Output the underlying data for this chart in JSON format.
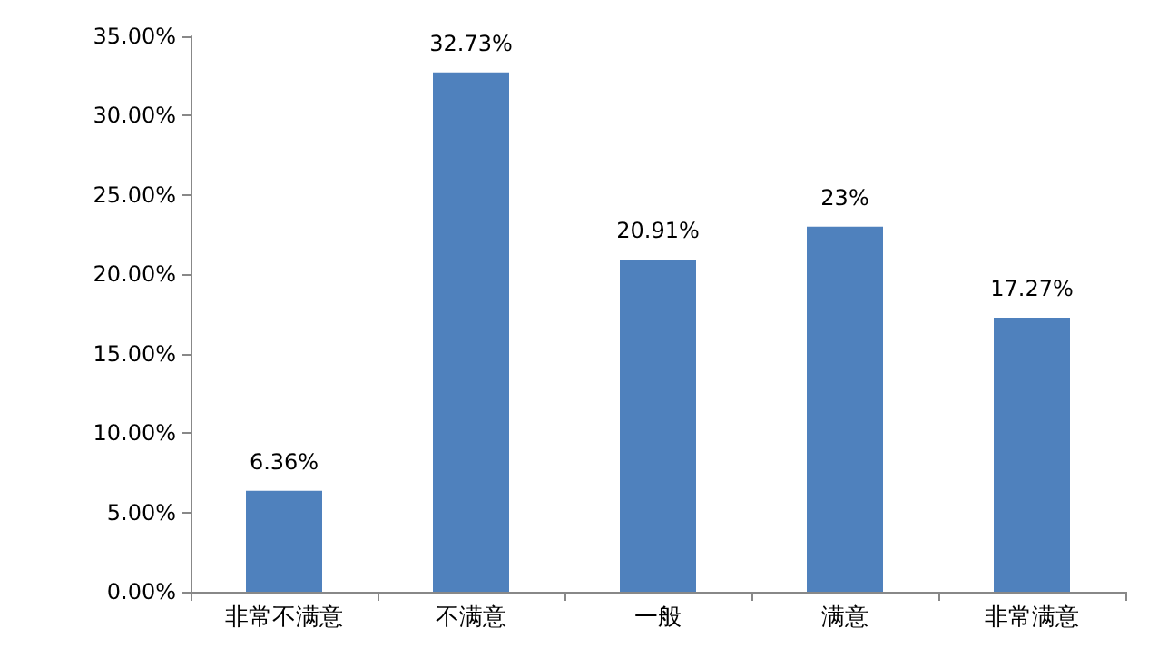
{
  "chart_data": {
    "type": "bar",
    "categories": [
      "非常不满意",
      "不满意",
      "一般",
      "满意",
      "非常满意"
    ],
    "values": [
      6.36,
      32.73,
      20.91,
      23,
      17.27
    ],
    "value_labels": [
      "6.36%",
      "32.73%",
      "20.91%",
      "23%",
      "17.27%"
    ],
    "color": "#4f81bd",
    "ylim": [
      0,
      35
    ],
    "yticks": [
      {
        "value": 0,
        "label": "0.00%"
      },
      {
        "value": 5,
        "label": "5.00%"
      },
      {
        "value": 10,
        "label": "10.00%"
      },
      {
        "value": 15,
        "label": "15.00%"
      },
      {
        "value": 20,
        "label": "20.00%"
      },
      {
        "value": 25,
        "label": "25.00%"
      },
      {
        "value": 30,
        "label": "30.00%"
      },
      {
        "value": 35,
        "label": "35.00%"
      }
    ],
    "grid": false
  }
}
